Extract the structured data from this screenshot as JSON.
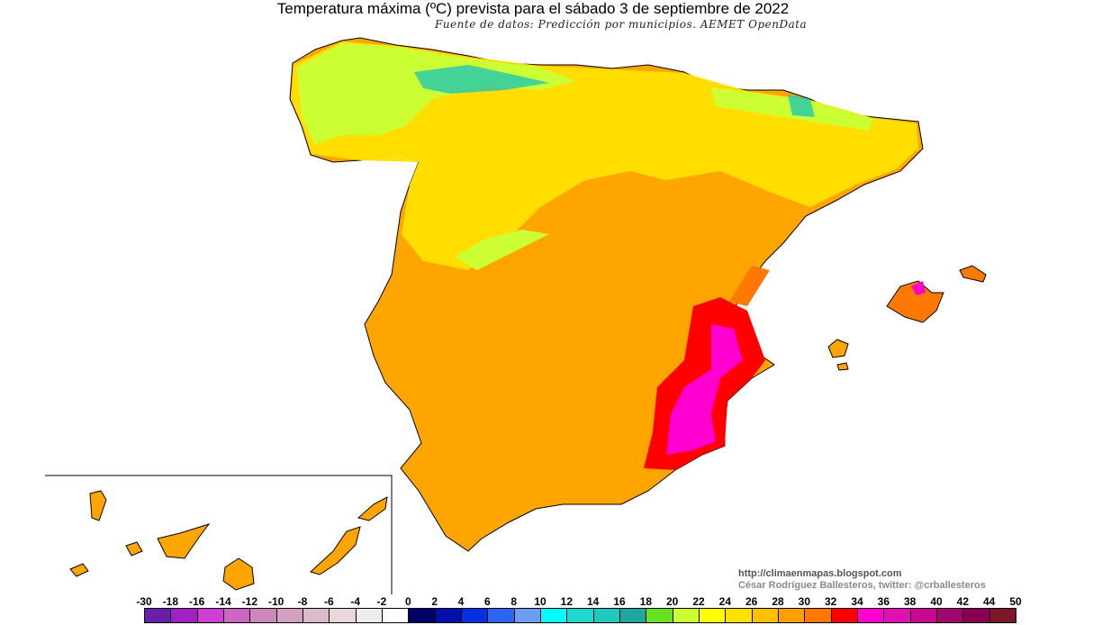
{
  "title": "Temperatura máxima (ºC) prevista para el sábado 3 de septiembre de 2022",
  "subtitle": "Fuente de datos: Predicción por municipios. AEMET OpenData",
  "credits": {
    "url": "http://climaenmapas.blogspot.com",
    "author": "César Rodríguez Ballesteros, twitter: @crballesteros"
  },
  "legend": {
    "labels": [
      "-30",
      "-18",
      "-16",
      "-14",
      "-12",
      "-10",
      "-8",
      "-6",
      "-4",
      "-2",
      "0",
      "2",
      "4",
      "6",
      "8",
      "10",
      "12",
      "14",
      "16",
      "18",
      "20",
      "22",
      "24",
      "26",
      "28",
      "30",
      "32",
      "34",
      "36",
      "38",
      "40",
      "42",
      "44",
      "50"
    ],
    "colors": [
      "#6a1fa8",
      "#a020c0",
      "#d040d0",
      "#cc66c4",
      "#cc88bb",
      "#d4a0c0",
      "#dcbccc",
      "#e8d8dc",
      "#eeeeee",
      "#ffffff",
      "#000066",
      "#0010a8",
      "#0030e0",
      "#2a66f0",
      "#6e9cf0",
      "#00ffff",
      "#20d8d0",
      "#20c8c0",
      "#20a8a0",
      "#66e020",
      "#ccff33",
      "#ffff00",
      "#ffe000",
      "#ffc000",
      "#ffa000",
      "#ff7800",
      "#ff0000",
      "#ff00d0",
      "#e010b0",
      "#c80890",
      "#a00870",
      "#880050",
      "#7a1a28"
    ]
  },
  "map_colors": {
    "base": "#ffa500",
    "warm": "#ffc000",
    "north": "#ffe800",
    "mountain": "#ccff33",
    "peaks": "#20c8b0",
    "hot": "#ff7800",
    "very_hot": "#ff0000",
    "extreme": "#ff00d0"
  }
}
